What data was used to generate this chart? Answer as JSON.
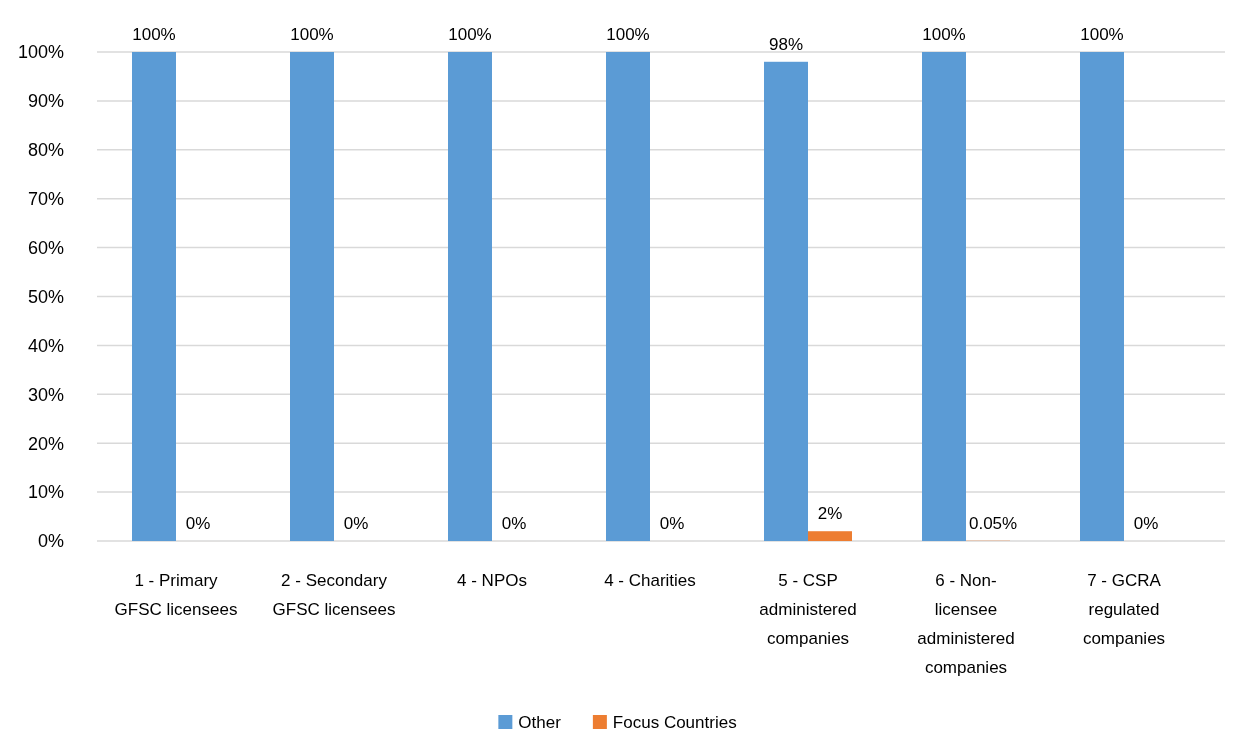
{
  "chart_data": {
    "type": "bar",
    "categories": [
      "1 - Primary GFSC licensees",
      "2 - Secondary GFSC licensees",
      "4 - NPOs",
      "4 - Charities",
      "5 - CSP administered companies",
      "6 - Non-licensee administered companies",
      "7 - GCRA regulated companies"
    ],
    "series": [
      {
        "name": "Other",
        "color": "#5b9bd5",
        "values": [
          100,
          100,
          100,
          100,
          98,
          100,
          100
        ],
        "value_labels": [
          "100%",
          "100%",
          "100%",
          "100%",
          "98%",
          "100%",
          "100%"
        ]
      },
      {
        "name": "Focus Countries",
        "color": "#ed7d31",
        "values": [
          0,
          0,
          0,
          0,
          2,
          0.05,
          0
        ],
        "value_labels": [
          "0%",
          "0%",
          "0%",
          "0%",
          "2%",
          "0.05%",
          "0%"
        ]
      }
    ],
    "ylim": [
      0,
      100
    ],
    "yticks": [
      {
        "value": 0,
        "label": "0%"
      },
      {
        "value": 10,
        "label": "10%"
      },
      {
        "value": 20,
        "label": "20%"
      },
      {
        "value": 30,
        "label": "30%"
      },
      {
        "value": 40,
        "label": "40%"
      },
      {
        "value": 50,
        "label": "50%"
      },
      {
        "value": 60,
        "label": "60%"
      },
      {
        "value": 70,
        "label": "70%"
      },
      {
        "value": 80,
        "label": "80%"
      },
      {
        "value": 90,
        "label": "90%"
      },
      {
        "value": 100,
        "label": "100%"
      }
    ],
    "grid": "y",
    "legend": "bottom"
  }
}
